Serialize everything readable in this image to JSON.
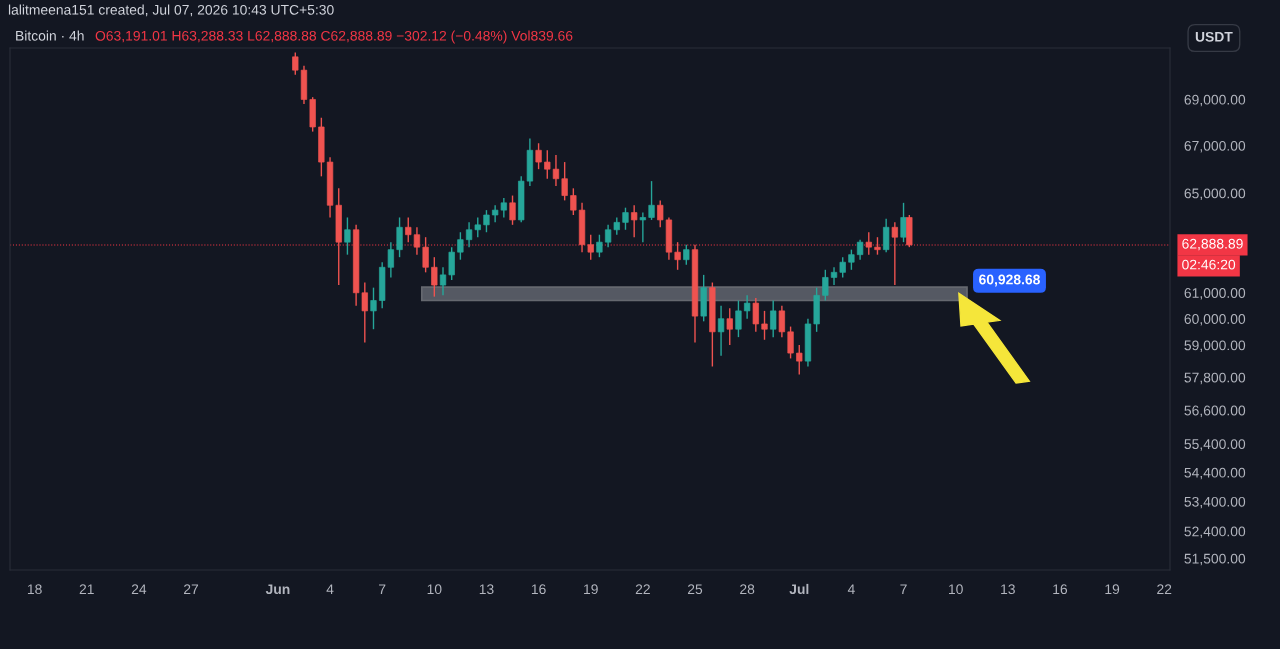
{
  "chart_data": {
    "type": "candlestick",
    "title": "Bitcoin · 4h",
    "ylabel": "USDT",
    "annotations": [
      "lalitmeena151 created, Jul 07, 2026 10:43 UTC+5:30",
      "O63,191.01 H63,288.33 L62,888.88 C62,888.89 −302.12 (−0.48%) Vol839.66",
      "02:46:20"
    ],
    "x": [
      "2026-06-02T00:00",
      "2026-06-02T12:00",
      "2026-06-03T00:00",
      "2026-06-03T12:00",
      "2026-06-04T00:00",
      "2026-06-04T12:00",
      "2026-06-05T00:00",
      "2026-06-05T12:00",
      "2026-06-06T00:00",
      "2026-06-06T12:00",
      "2026-06-07T00:00",
      "2026-06-07T12:00",
      "2026-06-08T00:00",
      "2026-06-08T12:00",
      "2026-06-09T00:00",
      "2026-06-09T12:00",
      "2026-06-10T00:00",
      "2026-06-10T12:00",
      "2026-06-11T00:00",
      "2026-06-11T12:00",
      "2026-06-12T00:00",
      "2026-06-12T12:00",
      "2026-06-13T00:00",
      "2026-06-13T12:00",
      "2026-06-14T00:00",
      "2026-06-14T12:00",
      "2026-06-15T00:00",
      "2026-06-15T12:00",
      "2026-06-16T00:00",
      "2026-06-16T12:00",
      "2026-06-17T00:00",
      "2026-06-17T12:00",
      "2026-06-18T00:00",
      "2026-06-18T12:00",
      "2026-06-19T00:00",
      "2026-06-19T12:00",
      "2026-06-20T00:00",
      "2026-06-20T12:00",
      "2026-06-21T00:00",
      "2026-06-21T12:00",
      "2026-06-22T00:00",
      "2026-06-22T12:00",
      "2026-06-23T00:00",
      "2026-06-23T12:00",
      "2026-06-24T00:00",
      "2026-06-24T12:00",
      "2026-06-25T00:00",
      "2026-06-25T12:00",
      "2026-06-26T00:00",
      "2026-06-26T12:00",
      "2026-06-27T00:00",
      "2026-06-27T12:00",
      "2026-06-28T00:00",
      "2026-06-28T12:00",
      "2026-06-29T00:00",
      "2026-06-29T12:00",
      "2026-06-30T00:00",
      "2026-06-30T12:00",
      "2026-07-01T00:00",
      "2026-07-01T12:00",
      "2026-07-02T00:00",
      "2026-07-02T12:00",
      "2026-07-03T00:00",
      "2026-07-03T12:00",
      "2026-07-04T00:00",
      "2026-07-04T12:00",
      "2026-07-05T00:00",
      "2026-07-05T12:00",
      "2026-07-06T00:00",
      "2026-07-06T12:00",
      "2026-07-07T00:00",
      "2026-07-07T08:00"
    ],
    "ohlc": [
      [
        70900,
        71100,
        70100,
        70300
      ],
      [
        70300,
        70500,
        68800,
        69000
      ],
      [
        69000,
        69100,
        67600,
        67800
      ],
      [
        67800,
        68200,
        65700,
        66300
      ],
      [
        66300,
        66500,
        64000,
        64500
      ],
      [
        64500,
        65200,
        61300,
        63000
      ],
      [
        63000,
        64000,
        62500,
        63500
      ],
      [
        63500,
        63700,
        60500,
        61000
      ],
      [
        61000,
        61400,
        59100,
        60300
      ],
      [
        60300,
        61200,
        59600,
        60700
      ],
      [
        60700,
        62200,
        60400,
        62000
      ],
      [
        62000,
        63000,
        61600,
        62700
      ],
      [
        62700,
        64000,
        62400,
        63600
      ],
      [
        63600,
        64000,
        63000,
        63300
      ],
      [
        63300,
        63600,
        62500,
        62800
      ],
      [
        62800,
        63200,
        61800,
        62000
      ],
      [
        62000,
        62400,
        60850,
        61300
      ],
      [
        61300,
        62000,
        60900,
        61700
      ],
      [
        61700,
        62800,
        61500,
        62600
      ],
      [
        62600,
        63400,
        62300,
        63100
      ],
      [
        63100,
        63800,
        62800,
        63500
      ],
      [
        63500,
        64000,
        63200,
        63700
      ],
      [
        63700,
        64300,
        63400,
        64100
      ],
      [
        64100,
        64500,
        63800,
        64300
      ],
      [
        64300,
        64800,
        64000,
        64600
      ],
      [
        64600,
        64900,
        63700,
        63900
      ],
      [
        63900,
        65700,
        63800,
        65500
      ],
      [
        65500,
        67300,
        65300,
        66800
      ],
      [
        66800,
        67100,
        66000,
        66300
      ],
      [
        66300,
        66800,
        65600,
        66000
      ],
      [
        66000,
        66600,
        65300,
        65600
      ],
      [
        65600,
        66300,
        64700,
        64900
      ],
      [
        64900,
        65200,
        64100,
        64300
      ],
      [
        64300,
        64600,
        62600,
        62900
      ],
      [
        62900,
        63300,
        62300,
        62600
      ],
      [
        62600,
        63300,
        62400,
        63000
      ],
      [
        63000,
        63700,
        62800,
        63500
      ],
      [
        63500,
        64000,
        63300,
        63800
      ],
      [
        63800,
        64400,
        63500,
        64200
      ],
      [
        64200,
        64500,
        63200,
        63900
      ],
      [
        63900,
        64200,
        63000,
        64000
      ],
      [
        64000,
        65500,
        63900,
        64500
      ],
      [
        64500,
        64700,
        63600,
        63900
      ],
      [
        63900,
        64000,
        62300,
        62600
      ],
      [
        62600,
        63000,
        61900,
        62300
      ],
      [
        62300,
        62900,
        62100,
        62700
      ],
      [
        62700,
        62900,
        59100,
        60100
      ],
      [
        60100,
        61700,
        59900,
        61200
      ],
      [
        61200,
        61400,
        58200,
        59500
      ],
      [
        59500,
        60500,
        58600,
        60000
      ],
      [
        60000,
        60400,
        59000,
        59600
      ],
      [
        59600,
        60700,
        59300,
        60300
      ],
      [
        60300,
        60900,
        60000,
        60600
      ],
      [
        60600,
        60800,
        59500,
        59800
      ],
      [
        59800,
        60300,
        59200,
        59600
      ],
      [
        59600,
        60700,
        59300,
        60300
      ],
      [
        60300,
        60500,
        59300,
        59500
      ],
      [
        59500,
        59700,
        58500,
        58700
      ],
      [
        58700,
        59000,
        57900,
        58400
      ],
      [
        58400,
        60000,
        58200,
        59800
      ],
      [
        59800,
        61200,
        59500,
        60900
      ],
      [
        60900,
        61900,
        60700,
        61600
      ],
      [
        61600,
        62000,
        61300,
        61800
      ],
      [
        61800,
        62400,
        61600,
        62200
      ],
      [
        62200,
        62700,
        61900,
        62500
      ],
      [
        62500,
        63100,
        62300,
        63000
      ],
      [
        63000,
        63400,
        62500,
        62800
      ],
      [
        62800,
        63200,
        62500,
        62700
      ],
      [
        62700,
        63950,
        62600,
        63600
      ],
      [
        63600,
        63800,
        61300,
        63200
      ],
      [
        63200,
        64600,
        63000,
        64000
      ],
      [
        64000,
        64100,
        62800,
        62888.89
      ]
    ],
    "colors": [
      "#ef5350",
      "#ef5350",
      "#ef5350",
      "#ef5350",
      "#ef5350",
      "#ef5350",
      "#26a69a",
      "#ef5350",
      "#ef5350",
      "#26a69a",
      "#26a69a",
      "#26a69a",
      "#26a69a",
      "#ef5350",
      "#ef5350",
      "#ef5350",
      "#ef5350",
      "#26a69a",
      "#26a69a",
      "#26a69a",
      "#26a69a",
      "#26a69a",
      "#26a69a",
      "#26a69a",
      "#26a69a",
      "#ef5350",
      "#26a69a",
      "#26a69a",
      "#ef5350",
      "#ef5350",
      "#ef5350",
      "#ef5350",
      "#ef5350",
      "#ef5350",
      "#ef5350",
      "#26a69a",
      "#26a69a",
      "#26a69a",
      "#26a69a",
      "#ef5350",
      "#26a69a",
      "#26a69a",
      "#ef5350",
      "#ef5350",
      "#ef5350",
      "#26a69a",
      "#ef5350",
      "#26a69a",
      "#ef5350",
      "#26a69a",
      "#ef5350",
      "#26a69a",
      "#26a69a",
      "#ef5350",
      "#ef5350",
      "#26a69a",
      "#ef5350",
      "#ef5350",
      "#ef5350",
      "#26a69a",
      "#26a69a",
      "#26a69a",
      "#26a69a",
      "#26a69a",
      "#26a69a",
      "#26a69a",
      "#ef5350",
      "#ef5350",
      "#26a69a",
      "#ef5350",
      "#26a69a",
      "#ef5350"
    ],
    "xlim": [
      "2026-05-16T14:00",
      "2026-07-22T08:00"
    ],
    "xticks": [
      {
        "value": "2026-05-18",
        "label": "18"
      },
      {
        "value": "2026-05-21",
        "label": "21"
      },
      {
        "value": "2026-05-24",
        "label": "24"
      },
      {
        "value": "2026-05-27",
        "label": "27"
      },
      {
        "value": "2026-06-01",
        "label": "Jun"
      },
      {
        "value": "2026-06-04",
        "label": "4"
      },
      {
        "value": "2026-06-07",
        "label": "7"
      },
      {
        "value": "2026-06-10",
        "label": "10"
      },
      {
        "value": "2026-06-13",
        "label": "13"
      },
      {
        "value": "2026-06-16",
        "label": "16"
      },
      {
        "value": "2026-06-19",
        "label": "19"
      },
      {
        "value": "2026-06-22",
        "label": "22"
      },
      {
        "value": "2026-06-25",
        "label": "25"
      },
      {
        "value": "2026-06-28",
        "label": "28"
      },
      {
        "value": "2026-07-01",
        "label": "Jul"
      },
      {
        "value": "2026-07-04",
        "label": "4"
      },
      {
        "value": "2026-07-07",
        "label": "7"
      },
      {
        "value": "2026-07-10",
        "label": "10"
      },
      {
        "value": "2026-07-13",
        "label": "13"
      },
      {
        "value": "2026-07-16",
        "label": "16"
      },
      {
        "value": "2026-07-19",
        "label": "19"
      },
      {
        "value": "2026-07-22",
        "label": "22"
      }
    ],
    "log": true,
    "ylim": [
      51120,
      71300
    ],
    "yticks": [
      {
        "value": 51500,
        "label": "51,500.00"
      },
      {
        "value": 52400,
        "label": "52,400.00"
      },
      {
        "value": 53400,
        "label": "53,400.00"
      },
      {
        "value": 54400,
        "label": "54,400.00"
      },
      {
        "value": 55400,
        "label": "55,400.00"
      },
      {
        "value": 56600,
        "label": "56,600.00"
      },
      {
        "value": 57800,
        "label": "57,800.00"
      },
      {
        "value": 59000,
        "label": "59,000.00"
      },
      {
        "value": 60000,
        "label": "60,000.00"
      },
      {
        "value": 61000,
        "label": "61,000.00"
      },
      {
        "value": 65000,
        "label": "65,000.00"
      },
      {
        "value": 67000,
        "label": "67,000.00"
      },
      {
        "value": 69000,
        "label": "69,000.00"
      }
    ],
    "ref_lines": [
      {
        "axis": "y",
        "value": 62888.89,
        "label": "62,888.89",
        "color": "#f23645",
        "line_style": "dotted"
      }
    ],
    "bands": [
      {
        "axis": "y",
        "from": 60700,
        "to": 61220,
        "label": "60,928.68",
        "color": "#d1d4dc"
      }
    ]
  }
}
